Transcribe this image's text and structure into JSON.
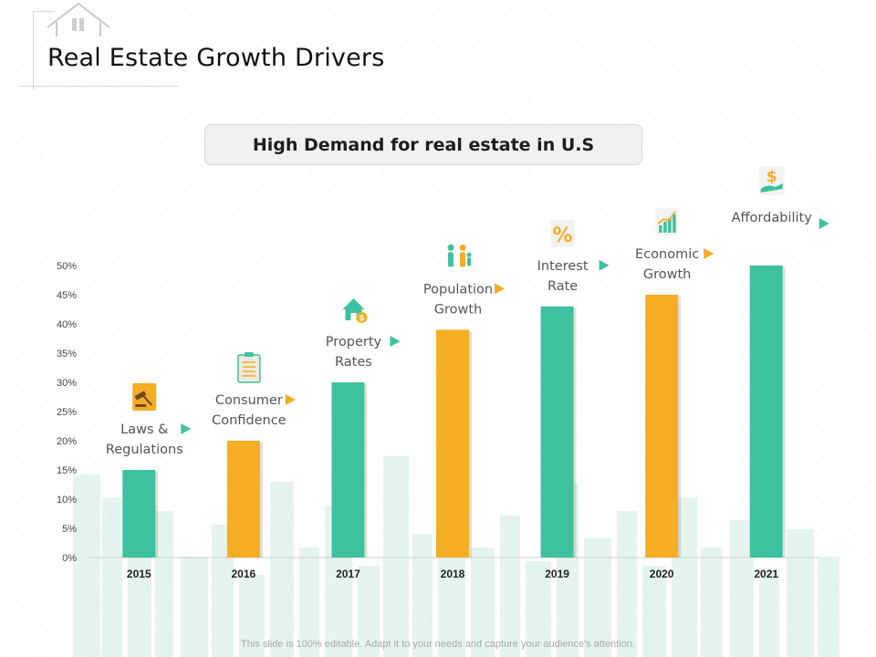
{
  "slide": {
    "title": "Real Estate Growth Drivers",
    "banner": "High Demand for real estate in U.S",
    "footer": "This slide is 100% editable. Adapt it to your needs and capture your audience's attention."
  },
  "colors": {
    "teal": "#3ec19e",
    "orange": "#f5ad23",
    "axis": "#d0d0d0"
  },
  "chart_data": {
    "type": "bar",
    "title": "",
    "xlabel": "",
    "ylabel": "",
    "ylim": [
      0,
      50
    ],
    "yticks": [
      "0%",
      "5%",
      "10%",
      "15%",
      "20%",
      "25%",
      "30%",
      "35%",
      "40%",
      "45%",
      "50%"
    ],
    "categories": [
      "2015",
      "2016",
      "2017",
      "2018",
      "2019",
      "2020",
      "2021"
    ],
    "values": [
      15,
      20,
      30,
      39,
      43,
      45,
      50
    ],
    "bar_colors": [
      "teal",
      "orange",
      "teal",
      "orange",
      "teal",
      "orange",
      "teal"
    ],
    "annotations": [
      {
        "lines": [
          "Laws &",
          "Regulations"
        ],
        "icon": "gavel-icon"
      },
      {
        "lines": [
          "Consumer",
          "Confidence"
        ],
        "icon": "clipboard-icon"
      },
      {
        "lines": [
          "Property",
          "Rates"
        ],
        "icon": "house-dollar-icon"
      },
      {
        "lines": [
          "Population",
          "Growth"
        ],
        "icon": "family-icon"
      },
      {
        "lines": [
          "Interest",
          "Rate"
        ],
        "icon": "percent-icon"
      },
      {
        "lines": [
          "Economic",
          "Growth"
        ],
        "icon": "growth-chart-icon"
      },
      {
        "lines": [
          "Affordability"
        ],
        "icon": "hand-dollar-icon"
      }
    ]
  }
}
